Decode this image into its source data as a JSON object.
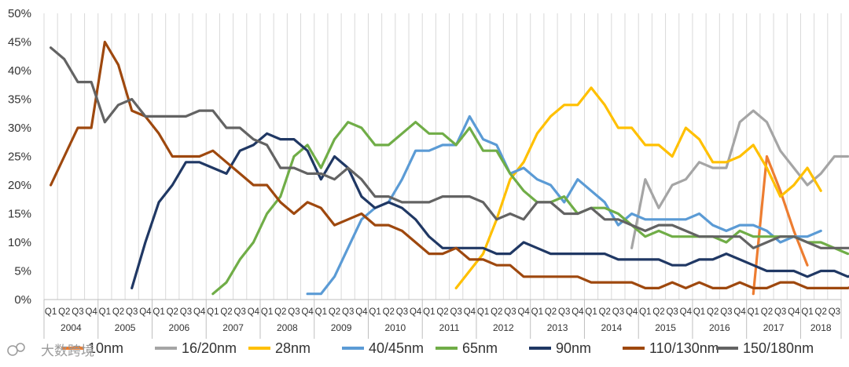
{
  "chart_data": {
    "type": "line",
    "title": "",
    "xlabel": "",
    "ylabel": "",
    "ylim": [
      0,
      50
    ],
    "yticks": [
      "0%",
      "5%",
      "10%",
      "15%",
      "20%",
      "25%",
      "30%",
      "35%",
      "40%",
      "45%",
      "50%"
    ],
    "quarter_labels": [
      "Q1",
      "Q2",
      "Q3",
      "Q4"
    ],
    "years": [
      "2004",
      "2005",
      "2006",
      "2007",
      "2008",
      "2009",
      "2010",
      "2011",
      "2012",
      "2013",
      "2014",
      "2015",
      "2016",
      "2017",
      "2018"
    ],
    "last_year_quarters": 3,
    "grid": "vertical",
    "legend_position": "bottom",
    "series": [
      {
        "name": "10nm",
        "color": "#ED7D31",
        "values": [
          null,
          null,
          null,
          null,
          null,
          null,
          null,
          null,
          null,
          null,
          null,
          null,
          null,
          null,
          null,
          null,
          null,
          null,
          null,
          null,
          null,
          null,
          null,
          null,
          null,
          null,
          null,
          null,
          null,
          null,
          null,
          null,
          null,
          null,
          null,
          null,
          null,
          null,
          null,
          null,
          null,
          null,
          null,
          null,
          null,
          null,
          null,
          null,
          null,
          null,
          null,
          null,
          1,
          25,
          19,
          12,
          6
        ]
      },
      {
        "name": "16/20nm",
        "color": "#A5A5A5",
        "values": [
          null,
          null,
          null,
          null,
          null,
          null,
          null,
          null,
          null,
          null,
          null,
          null,
          null,
          null,
          null,
          null,
          null,
          null,
          null,
          null,
          null,
          null,
          null,
          null,
          null,
          null,
          null,
          null,
          null,
          null,
          null,
          null,
          null,
          null,
          null,
          null,
          null,
          null,
          null,
          null,
          null,
          null,
          null,
          9,
          21,
          16,
          20,
          21,
          24,
          23,
          23,
          31,
          33,
          31,
          26,
          23,
          20,
          22,
          25,
          25
        ]
      },
      {
        "name": "28nm",
        "color": "#FFC000",
        "values": [
          null,
          null,
          null,
          null,
          null,
          null,
          null,
          null,
          null,
          null,
          null,
          null,
          null,
          null,
          null,
          null,
          null,
          null,
          null,
          null,
          null,
          null,
          null,
          null,
          null,
          null,
          null,
          null,
          null,
          null,
          2,
          5,
          8,
          14,
          21,
          24,
          29,
          32,
          34,
          34,
          37,
          34,
          30,
          30,
          27,
          27,
          25,
          30,
          28,
          24,
          24,
          25,
          27,
          23,
          18,
          20,
          23,
          19
        ]
      },
      {
        "name": "40/45nm",
        "color": "#5B9BD5",
        "values": [
          null,
          null,
          null,
          null,
          null,
          null,
          null,
          null,
          null,
          null,
          null,
          null,
          null,
          null,
          null,
          null,
          null,
          null,
          null,
          1,
          1,
          4,
          9,
          14,
          16,
          17,
          21,
          26,
          26,
          27,
          27,
          32,
          28,
          27,
          22,
          23,
          21,
          20,
          17,
          21,
          19,
          17,
          13,
          15,
          14,
          14,
          14,
          14,
          15,
          13,
          12,
          13,
          13,
          12,
          10,
          11,
          11,
          12
        ]
      },
      {
        "name": "65nm",
        "color": "#70AD47",
        "values": [
          null,
          null,
          null,
          null,
          null,
          null,
          null,
          null,
          null,
          null,
          null,
          null,
          1,
          3,
          7,
          10,
          15,
          18,
          25,
          27,
          23,
          28,
          31,
          30,
          27,
          27,
          29,
          31,
          29,
          29,
          27,
          30,
          26,
          26,
          22,
          19,
          17,
          17,
          18,
          15,
          16,
          16,
          15,
          13,
          11,
          12,
          11,
          11,
          11,
          11,
          10,
          12,
          11,
          11,
          11,
          11,
          10,
          10,
          9,
          8
        ]
      },
      {
        "name": "90nm",
        "color": "#203864",
        "values": [
          null,
          null,
          null,
          null,
          null,
          null,
          2,
          10,
          17,
          20,
          24,
          24,
          23,
          22,
          26,
          27,
          29,
          28,
          28,
          26,
          21,
          25,
          23,
          18,
          16,
          17,
          16,
          14,
          11,
          9,
          9,
          9,
          9,
          8,
          8,
          10,
          9,
          8,
          8,
          8,
          8,
          8,
          7,
          7,
          7,
          7,
          6,
          6,
          7,
          7,
          8,
          7,
          6,
          5,
          5,
          5,
          4,
          5,
          5,
          4,
          5,
          5,
          4
        ]
      },
      {
        "name": "110/130nm",
        "color": "#9E480E",
        "values": [
          20,
          25,
          30,
          30,
          45,
          41,
          33,
          32,
          29,
          25,
          25,
          25,
          26,
          24,
          22,
          20,
          20,
          17,
          15,
          17,
          16,
          13,
          14,
          15,
          13,
          13,
          12,
          10,
          8,
          8,
          9,
          7,
          7,
          6,
          6,
          4,
          4,
          4,
          4,
          4,
          3,
          3,
          3,
          3,
          2,
          2,
          3,
          2,
          3,
          2,
          2,
          3,
          2,
          2,
          3,
          3,
          2,
          2,
          2,
          2,
          3
        ]
      },
      {
        "name": "150/180nm",
        "color": "#636363",
        "values": [
          44,
          42,
          38,
          38,
          31,
          34,
          35,
          32,
          32,
          32,
          32,
          33,
          33,
          30,
          30,
          28,
          27,
          23,
          23,
          22,
          22,
          21,
          23,
          21,
          18,
          18,
          17,
          17,
          17,
          18,
          18,
          18,
          17,
          14,
          15,
          14,
          17,
          17,
          15,
          15,
          16,
          14,
          14,
          13,
          12,
          13,
          13,
          12,
          11,
          11,
          11,
          11,
          9,
          10,
          11,
          11,
          10,
          9,
          9,
          9,
          9
        ]
      }
    ]
  },
  "watermark": "大数跨境"
}
